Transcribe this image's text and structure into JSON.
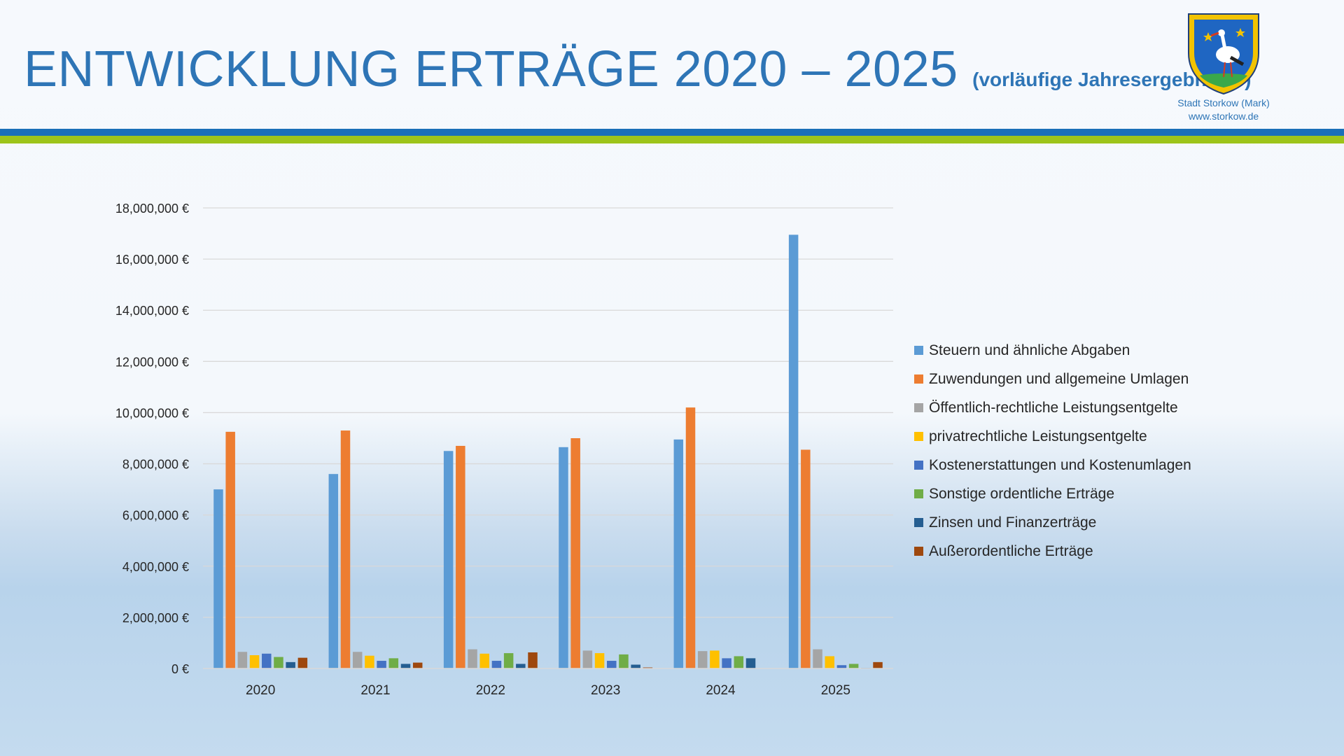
{
  "header": {
    "title": "ENTWICKLUNG ERTRÄGE 2020 – 2025",
    "subtitle": "(vorläufige Jahresergebnisse)",
    "crest_caption_line1": "Stadt Storkow (Mark)",
    "crest_caption_line2": "www.storkow.de"
  },
  "colors": {
    "title": "#2e75b6",
    "stripe_blue": "#1a6fb8",
    "stripe_green": "#9dc41a"
  },
  "chart_data": {
    "type": "bar",
    "categories": [
      "2020",
      "2021",
      "2022",
      "2023",
      "2024",
      "2025"
    ],
    "ylim": [
      0,
      18000000
    ],
    "ytick_step": 2000000,
    "ytick_labels": [
      "0 €",
      "2,000,000 €",
      "4,000,000 €",
      "6,000,000 €",
      "8,000,000 €",
      "10,000,000 €",
      "12,000,000 €",
      "14,000,000 €",
      "16,000,000 €",
      "18,000,000 €"
    ],
    "grid": true,
    "legend_position": "right",
    "series": [
      {
        "name": "Steuern und ähnliche Abgaben",
        "color": "#5b9bd5",
        "values": [
          7000000,
          7600000,
          8500000,
          8650000,
          8950000,
          16950000
        ]
      },
      {
        "name": "Zuwendungen und allgemeine Umlagen",
        "color": "#ed7d31",
        "values": [
          9250000,
          9300000,
          8700000,
          9000000,
          10200000,
          8550000
        ]
      },
      {
        "name": "Öffentlich-rechtliche Leistungsentgelte",
        "color": "#a5a5a5",
        "values": [
          650000,
          650000,
          750000,
          700000,
          680000,
          750000
        ]
      },
      {
        "name": "privatrechtliche Leistungsentgelte",
        "color": "#ffc000",
        "values": [
          520000,
          500000,
          580000,
          600000,
          700000,
          480000
        ]
      },
      {
        "name": "Kostenerstattungen und Kostenumlagen",
        "color": "#4472c4",
        "values": [
          580000,
          300000,
          300000,
          300000,
          400000,
          130000
        ]
      },
      {
        "name": "Sonstige ordentliche Erträge",
        "color": "#70ad47",
        "values": [
          450000,
          400000,
          600000,
          550000,
          480000,
          180000
        ]
      },
      {
        "name": "Zinsen und Finanzerträge",
        "color": "#255e91",
        "values": [
          250000,
          180000,
          180000,
          150000,
          400000,
          20000
        ]
      },
      {
        "name": "Außerordentliche Erträge",
        "color": "#9e480e",
        "values": [
          420000,
          230000,
          630000,
          40000,
          0,
          250000
        ]
      }
    ]
  }
}
